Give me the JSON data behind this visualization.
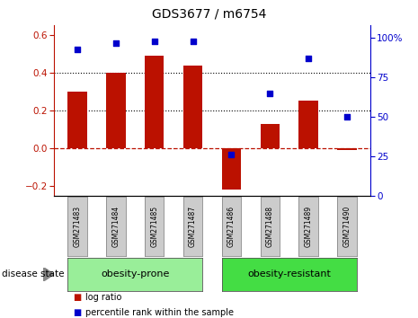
{
  "title": "GDS3677 / m6754",
  "samples": [
    "GSM271483",
    "GSM271484",
    "GSM271485",
    "GSM271487",
    "GSM271486",
    "GSM271488",
    "GSM271489",
    "GSM271490"
  ],
  "log_ratio": [
    0.3,
    0.4,
    0.49,
    0.44,
    -0.22,
    0.13,
    0.25,
    -0.01
  ],
  "percentile_rank": [
    93,
    97,
    98,
    98,
    26,
    65,
    87,
    50
  ],
  "bar_color": "#bb1100",
  "dot_color": "#0000cc",
  "ylim_left": [
    -0.25,
    0.65
  ],
  "ylim_right": [
    0,
    108.0
  ],
  "yticks_left": [
    -0.2,
    0.0,
    0.2,
    0.4,
    0.6
  ],
  "yticks_right": [
    0,
    25,
    50,
    75,
    100
  ],
  "ytick_labels_right": [
    "0",
    "25",
    "50",
    "75",
    "100%"
  ],
  "hlines": [
    0.2,
    0.4
  ],
  "group1_label": "obesity-prone",
  "group2_label": "obesity-resistant",
  "group1_end_idx": 3,
  "group2_start_idx": 4,
  "group1_color": "#99ee99",
  "group2_color": "#44dd44",
  "disease_state_label": "disease state",
  "legend_bar_label": "log ratio",
  "legend_dot_label": "percentile rank within the sample",
  "fig_bg_color": "#ffffff",
  "plot_bg_color": "#ffffff",
  "label_box_color": "#cccccc",
  "bar_width": 0.5,
  "xlim": [
    -0.6,
    7.6
  ]
}
